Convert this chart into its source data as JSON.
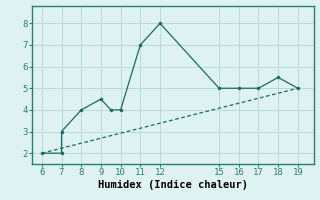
{
  "xlabel": "Humidex (Indice chaleur)",
  "bg_color": "#dff2f2",
  "grid_color": "#b8dada",
  "line_color": "#1a6b60",
  "spine_color": "#2a8070",
  "line1_x": [
    6,
    7,
    7,
    8,
    9,
    9.5,
    10,
    11,
    12,
    15,
    16,
    17,
    18,
    19
  ],
  "line1_y": [
    2,
    2,
    3,
    4,
    4.5,
    4,
    4,
    7,
    8,
    5,
    5,
    5,
    5.5,
    5
  ],
  "line2_x": [
    6,
    19
  ],
  "line2_y": [
    2.0,
    5.0
  ],
  "xlim": [
    5.5,
    19.8
  ],
  "ylim": [
    1.5,
    8.8
  ],
  "xticks": [
    6,
    7,
    8,
    9,
    10,
    11,
    12,
    15,
    16,
    17,
    18,
    19
  ],
  "yticks": [
    2,
    3,
    4,
    5,
    6,
    7,
    8
  ],
  "tick_fontsize": 6.5,
  "xlabel_fontsize": 7.5
}
